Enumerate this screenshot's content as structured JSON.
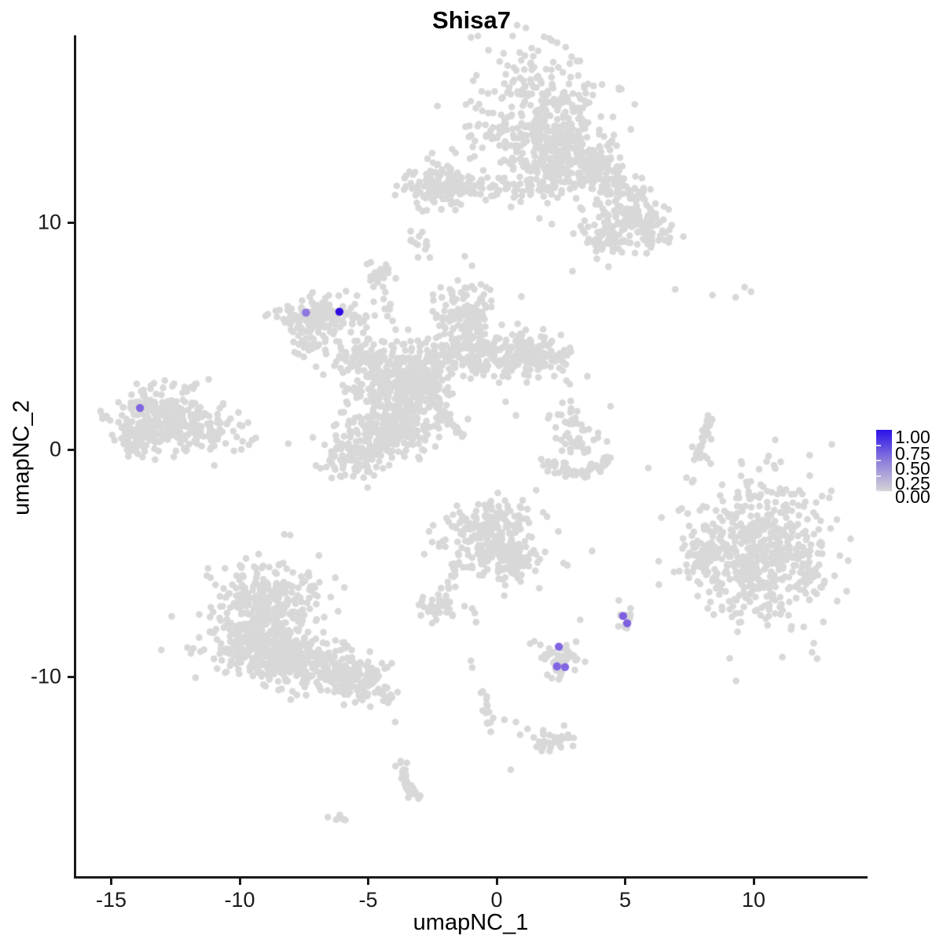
{
  "chart_data": {
    "type": "scatter",
    "title": "Shisa7",
    "xlabel": "umapNC_1",
    "ylabel": "umapNC_2",
    "x_ticks": [
      -15,
      -10,
      -5,
      0,
      5,
      10
    ],
    "y_ticks": [
      10,
      0,
      -10
    ],
    "xlim": [
      -16.4,
      14.4
    ],
    "ylim": [
      -18.8,
      18.2
    ],
    "grid": false,
    "legend": {
      "position": "right",
      "labels": [
        "1.00",
        "0.75",
        "0.50",
        "0.25",
        "0.00"
      ],
      "high_color": "#2a12e8",
      "low_color": "#d6d3d6"
    },
    "colors": {
      "background_cell": "#d8d8d8",
      "expressing_mid": "#8165e3",
      "expressing_high": "#2b0be0"
    },
    "background_cells": {
      "blobs": [
        {
          "x": 1.7,
          "y": 14.5,
          "sx": 1.35,
          "sy": 1.5,
          "n": 380
        },
        {
          "x": 2.6,
          "y": 12.6,
          "sx": 1.1,
          "sy": 0.8,
          "n": 170
        },
        {
          "x": 4.35,
          "y": 11.9,
          "sx": 1.5,
          "sy": 0.42,
          "n": 200,
          "rot": -45
        },
        {
          "x": 5.1,
          "y": 9.9,
          "sx": 0.65,
          "sy": 0.55,
          "n": 110
        },
        {
          "x": 4.0,
          "y": 9.3,
          "sx": 0.38,
          "sy": 0.3,
          "n": 40
        },
        {
          "x": -2.3,
          "y": 11.7,
          "sx": 0.62,
          "sy": 0.5,
          "n": 110
        },
        {
          "x": -0.9,
          "y": 11.6,
          "sx": 1.1,
          "sy": 0.3,
          "n": 90
        },
        {
          "x": -2.95,
          "y": 9.15,
          "sx": 0.22,
          "sy": 0.3,
          "n": 12
        },
        {
          "x": -4.55,
          "y": 7.55,
          "sx": 0.3,
          "sy": 0.4,
          "n": 26
        },
        {
          "x": -6.6,
          "y": 5.95,
          "sx": 0.95,
          "sy": 0.42,
          "n": 120
        },
        {
          "x": -7.3,
          "y": 5.15,
          "sx": 0.4,
          "sy": 0.55,
          "n": 55
        },
        {
          "x": -5.5,
          "y": 4.05,
          "sx": 0.75,
          "sy": 0.35,
          "n": 50
        },
        {
          "x": -4.0,
          "y": 3.3,
          "sx": 0.95,
          "sy": 0.85,
          "n": 230
        },
        {
          "x": -3.4,
          "y": 1.8,
          "sx": 0.8,
          "sy": 0.8,
          "n": 190
        },
        {
          "x": -4.6,
          "y": 0.6,
          "sx": 0.75,
          "sy": 0.7,
          "n": 150
        },
        {
          "x": -5.6,
          "y": -0.4,
          "sx": 0.6,
          "sy": 0.5,
          "n": 80
        },
        {
          "x": -2.6,
          "y": 3.5,
          "sx": 0.55,
          "sy": 0.5,
          "n": 90
        },
        {
          "x": -1.0,
          "y": 4.3,
          "sx": 0.95,
          "sy": 0.5,
          "n": 160
        },
        {
          "x": -1.3,
          "y": 6.0,
          "sx": 0.6,
          "sy": 0.75,
          "n": 120
        },
        {
          "x": 1.0,
          "y": 4.4,
          "sx": 0.75,
          "sy": 0.55,
          "n": 100
        },
        {
          "x": 1.8,
          "y": 3.9,
          "sx": 0.5,
          "sy": 0.45,
          "n": 55
        },
        {
          "x": -13.2,
          "y": 1.6,
          "sx": 0.8,
          "sy": 0.6,
          "n": 150
        },
        {
          "x": -12.0,
          "y": 0.8,
          "sx": 1.1,
          "sy": 0.55,
          "n": 160
        },
        {
          "x": -14.0,
          "y": 0.6,
          "sx": 0.5,
          "sy": 0.5,
          "n": 60
        },
        {
          "x": 3.2,
          "y": 0.8,
          "sx": 0.5,
          "sy": 0.65,
          "n": 50
        },
        {
          "x": 10.2,
          "y": -4.4,
          "sx": 1.35,
          "sy": 1.5,
          "n": 500
        },
        {
          "x": 8.0,
          "y": -4.6,
          "sx": 0.4,
          "sy": 0.55,
          "n": 40
        },
        {
          "x": 10.2,
          "y": -4.4,
          "sx": 1.9,
          "sy": 2.0,
          "n": 70
        },
        {
          "x": -8.9,
          "y": -6.6,
          "sx": 0.95,
          "sy": 0.8,
          "n": 240
        },
        {
          "x": -9.2,
          "y": -8.6,
          "sx": 1.15,
          "sy": 0.75,
          "n": 270
        },
        {
          "x": -7.4,
          "y": -9.3,
          "sx": 1.0,
          "sy": 0.6,
          "n": 220
        },
        {
          "x": -5.6,
          "y": -10.1,
          "sx": 0.8,
          "sy": 0.45,
          "n": 120
        },
        {
          "x": -0.4,
          "y": -3.8,
          "sx": 0.9,
          "sy": 0.8,
          "n": 240
        },
        {
          "x": 0.7,
          "y": -5.0,
          "sx": 0.5,
          "sy": 0.55,
          "n": 70
        },
        {
          "x": -2.5,
          "y": -6.9,
          "sx": 0.5,
          "sy": 0.3,
          "n": 40
        },
        {
          "x": 2.4,
          "y": -9.2,
          "sx": 0.45,
          "sy": 0.5,
          "n": 48
        },
        {
          "x": 4.95,
          "y": -7.45,
          "sx": 0.22,
          "sy": 0.3,
          "n": 14
        },
        {
          "x": 2.1,
          "y": -12.8,
          "sx": 0.5,
          "sy": 0.28,
          "n": 30
        },
        {
          "x": -6.1,
          "y": -16.3,
          "sx": 0.15,
          "sy": 0.12,
          "n": 7
        }
      ],
      "chains": [
        {
          "pts": [
            [
              -4.35,
              6.9
            ],
            [
              -4.0,
              5.3
            ]
          ],
          "n": 7,
          "jitter": 0.08
        },
        {
          "pts": [
            [
              -2.65,
              2.25
            ],
            [
              -1.3,
              0.6
            ]
          ],
          "n": 42,
          "jitter": 0.06
        },
        {
          "pts": [
            [
              -12.4,
              2.3
            ],
            [
              -11.4,
              3.05
            ]
          ],
          "n": 9,
          "jitter": 0.12
        },
        {
          "pts": [
            [
              1.9,
              -0.5
            ],
            [
              3.1,
              -1.15
            ],
            [
              4.4,
              -0.4
            ]
          ],
          "n": 60,
          "jitter": 0.12
        },
        {
          "pts": [
            [
              8.35,
              1.5
            ],
            [
              8.05,
              0.5
            ],
            [
              7.75,
              -0.45
            ]
          ],
          "n": 40,
          "jitter": 0.05
        },
        {
          "pts": [
            [
              -4.6,
              -10.5
            ],
            [
              -3.85,
              -10.95
            ]
          ],
          "n": 12,
          "jitter": 0.15
        },
        {
          "pts": [
            [
              -1.5,
              -4.9
            ],
            [
              -1.85,
              -6.2
            ]
          ],
          "n": 10,
          "jitter": 0.08
        },
        {
          "pts": [
            [
              -0.5,
              -10.6
            ],
            [
              -0.2,
              -12.3
            ]
          ],
          "n": 14,
          "jitter": 0.1
        },
        {
          "pts": [
            [
              -3.75,
              -13.8
            ],
            [
              -3.5,
              -14.7
            ],
            [
              -3.2,
              -15.3
            ]
          ],
          "n": 30,
          "jitter": 0.12
        }
      ],
      "singles": [
        [
          6.95,
          7.05
        ],
        [
          8.4,
          6.8
        ],
        [
          9.3,
          6.7
        ],
        [
          9.65,
          7.15
        ],
        [
          9.9,
          6.95
        ],
        [
          7.2,
          -2.6
        ],
        [
          0.35,
          2.1
        ],
        [
          0.75,
          1.5
        ],
        [
          2.05,
          1.5
        ],
        [
          8.35,
          0.45
        ],
        [
          8.2,
          -0.4
        ],
        [
          -3.6,
          11.45
        ],
        [
          -3.95,
          11.2
        ],
        [
          3.9,
          8.4
        ],
        [
          4.35,
          8.05
        ],
        [
          2.95,
          7.85
        ],
        [
          -2.6,
          8.45
        ],
        [
          -1.25,
          -6.9
        ],
        [
          -0.95,
          -7.0
        ],
        [
          -0.85,
          -7.2
        ],
        [
          -0.8,
          -7.6
        ],
        [
          2.6,
          -5.0
        ],
        [
          2.75,
          -5.1
        ],
        [
          3.25,
          -7.5
        ],
        [
          -1.0,
          -9.3
        ],
        [
          -0.95,
          -9.6
        ],
        [
          0.3,
          -11.9
        ],
        [
          0.75,
          -12.0
        ],
        [
          1.2,
          -12.3
        ],
        [
          0.55,
          -14.1
        ],
        [
          -3.95,
          -12.0
        ]
      ]
    },
    "expressing_cells": [
      {
        "x": -7.42,
        "y": 6.03,
        "value": 0.5,
        "color": "#8f77e0"
      },
      {
        "x": -6.12,
        "y": 6.07,
        "value": 1.0,
        "color": "#2b0be0"
      },
      {
        "x": -13.88,
        "y": 1.83,
        "value": 0.5,
        "color": "#8165e3"
      },
      {
        "x": 2.42,
        "y": -8.68,
        "value": 0.5,
        "color": "#8165e3"
      },
      {
        "x": 2.35,
        "y": -9.55,
        "value": 0.5,
        "color": "#8165e3"
      },
      {
        "x": 2.66,
        "y": -9.58,
        "value": 0.5,
        "color": "#8165e3"
      },
      {
        "x": 4.92,
        "y": -7.33,
        "value": 0.5,
        "color": "#7d5fe0"
      },
      {
        "x": 5.08,
        "y": -7.65,
        "value": 0.5,
        "color": "#7d5fe0"
      }
    ]
  }
}
